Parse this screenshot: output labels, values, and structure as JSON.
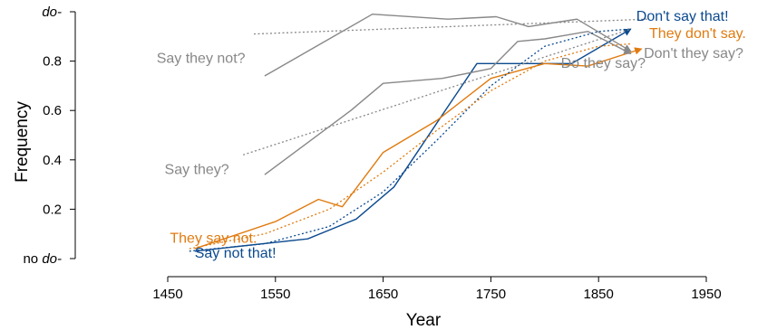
{
  "chart_data": {
    "type": "line",
    "title": "",
    "xlabel": "Year",
    "ylabel": "Frequency",
    "xlim": [
      1450,
      1950
    ],
    "ylim": [
      0,
      1
    ],
    "x_ticks": [
      "1450",
      "1550",
      "1650",
      "1750",
      "1850",
      "1950"
    ],
    "y_ticks": [
      {
        "value": 0,
        "label": "no do-"
      },
      {
        "value": 0.2,
        "label": "0.2"
      },
      {
        "value": 0.4,
        "label": "0.4"
      },
      {
        "value": 0.6,
        "label": "0.6"
      },
      {
        "value": 0.8,
        "label": "0.8"
      },
      {
        "value": 1.0,
        "label": "do-"
      }
    ],
    "colors": {
      "blue": "#0b4a8f",
      "orange": "#e07b10",
      "gray": "#888888"
    },
    "series": [
      {
        "name": "Don't say that!",
        "color": "#0b4a8f",
        "style": "solid",
        "arrow": true,
        "points": [
          [
            1475,
            0.03
          ],
          [
            1580,
            0.08
          ],
          [
            1625,
            0.16
          ],
          [
            1660,
            0.29
          ],
          [
            1700,
            0.55
          ],
          [
            1737,
            0.79
          ],
          [
            1825,
            0.79
          ],
          [
            1880,
            0.93
          ]
        ]
      },
      {
        "name": "They don't say.",
        "color": "#e07b10",
        "style": "solid",
        "arrow": true,
        "points": [
          [
            1475,
            0.04
          ],
          [
            1550,
            0.15
          ],
          [
            1590,
            0.24
          ],
          [
            1612,
            0.21
          ],
          [
            1650,
            0.43
          ],
          [
            1700,
            0.56
          ],
          [
            1750,
            0.73
          ],
          [
            1800,
            0.79
          ],
          [
            1840,
            0.78
          ],
          [
            1890,
            0.85
          ]
        ]
      },
      {
        "name": "Don't they say?",
        "color": "#888888",
        "style": "solid",
        "arrow": true,
        "points": [
          [
            1540,
            0.34
          ],
          [
            1620,
            0.6
          ],
          [
            1650,
            0.71
          ],
          [
            1705,
            0.73
          ],
          [
            1750,
            0.77
          ],
          [
            1775,
            0.88
          ],
          [
            1800,
            0.89
          ],
          [
            1840,
            0.92
          ],
          [
            1880,
            0.83
          ]
        ]
      },
      {
        "name": "Do they say?",
        "color": "#888888",
        "style": "solid",
        "arrow": true,
        "points": [
          [
            1540,
            0.74
          ],
          [
            1640,
            0.99
          ],
          [
            1710,
            0.97
          ],
          [
            1755,
            0.98
          ],
          [
            1785,
            0.94
          ],
          [
            1830,
            0.97
          ],
          [
            1880,
            0.84
          ]
        ]
      },
      {
        "name": "Say not that!",
        "color": "#0b4a8f",
        "style": "dotted",
        "arrow": false,
        "points": [
          [
            1470,
            0.03
          ],
          [
            1540,
            0.06
          ],
          [
            1600,
            0.13
          ],
          [
            1650,
            0.27
          ],
          [
            1700,
            0.48
          ],
          [
            1750,
            0.7
          ],
          [
            1800,
            0.86
          ],
          [
            1850,
            0.92
          ],
          [
            1880,
            0.93
          ]
        ]
      },
      {
        "name": "They say not.",
        "color": "#e07b10",
        "style": "dotted",
        "arrow": false,
        "points": [
          [
            1470,
            0.04
          ],
          [
            1540,
            0.1
          ],
          [
            1600,
            0.2
          ],
          [
            1650,
            0.35
          ],
          [
            1700,
            0.52
          ],
          [
            1750,
            0.68
          ],
          [
            1800,
            0.8
          ],
          [
            1850,
            0.86
          ],
          [
            1880,
            0.87
          ]
        ]
      },
      {
        "name": "Say they?",
        "color": "#888888",
        "style": "dotted",
        "arrow": false,
        "points": [
          [
            1520,
            0.42
          ],
          [
            1880,
            0.93
          ]
        ]
      },
      {
        "name": "Say they not?",
        "color": "#888888",
        "style": "dotted",
        "arrow": false,
        "points": [
          [
            1530,
            0.91
          ],
          [
            1895,
            0.97
          ]
        ]
      }
    ],
    "labels": [
      {
        "text": "Don't say that!",
        "color": "#0b4a8f",
        "x": 1885,
        "y": 0.963,
        "anchor": "start"
      },
      {
        "text": "They don't say.",
        "color": "#e07b10",
        "x": 1897,
        "y": 0.893,
        "anchor": "start"
      },
      {
        "text": "Don't they say?",
        "color": "#888888",
        "x": 1892,
        "y": 0.813,
        "anchor": "start"
      },
      {
        "text": "Do they say?",
        "color": "#888888",
        "x": 1815,
        "y": 0.772,
        "anchor": "start"
      },
      {
        "text": "Say they not?",
        "color": "#888888",
        "x": 1522,
        "y": 0.793,
        "anchor": "end"
      },
      {
        "text": "Say they?",
        "color": "#888888",
        "x": 1507,
        "y": 0.342,
        "anchor": "end"
      },
      {
        "text": "They say not.",
        "color": "#e07b10",
        "x": 1452,
        "y": 0.065,
        "anchor": "start"
      },
      {
        "text": "Say not that!",
        "color": "#0b4a8f",
        "x": 1475,
        "y": 0.003,
        "anchor": "start"
      }
    ]
  }
}
